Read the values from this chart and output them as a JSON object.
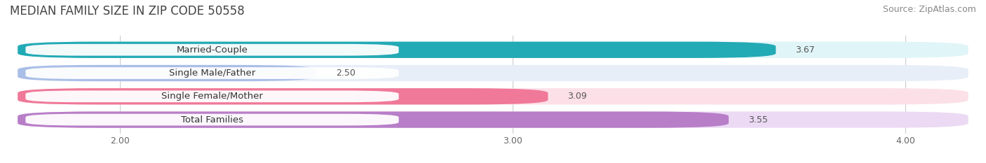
{
  "title": "MEDIAN FAMILY SIZE IN ZIP CODE 50558",
  "source": "Source: ZipAtlas.com",
  "categories": [
    "Married-Couple",
    "Single Male/Father",
    "Single Female/Mother",
    "Total Families"
  ],
  "values": [
    3.67,
    2.5,
    3.09,
    3.55
  ],
  "bar_colors": [
    "#22aab5",
    "#aabfe8",
    "#f07898",
    "#b87ec8"
  ],
  "bar_bg_colors": [
    "#e0f5f7",
    "#e8eef8",
    "#fce0e8",
    "#ecdaf4"
  ],
  "xlim_min": 1.72,
  "xlim_max": 4.18,
  "xticks": [
    2.0,
    3.0,
    4.0
  ],
  "title_fontsize": 12,
  "source_fontsize": 9,
  "bar_label_fontsize": 9,
  "category_fontsize": 9.5,
  "background_color": "#ffffff",
  "bar_area_bg": "#f0f0f0"
}
